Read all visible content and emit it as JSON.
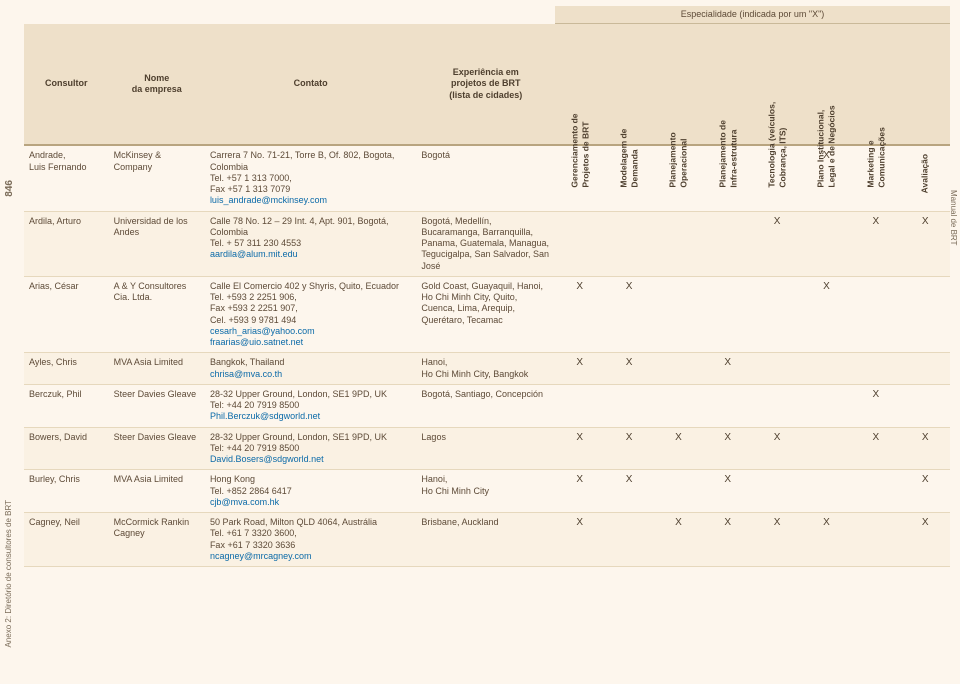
{
  "side": {
    "pageNumber": "846",
    "annex": "Anexo 2: Diretório de consultores de BRT",
    "rightLabel": "Manual de BRT"
  },
  "header": {
    "specialtyBanner": "Especialidade (indicada por um \"X\")",
    "consultor": "Consultor",
    "empresa": "Nome\nda empresa",
    "contato": "Contato",
    "experiencia": "Experiência em\nprojetos de BRT\n(lista de cidades)",
    "cols": [
      "Gerenciamento de\nProjetos de BRT",
      "Modelagem de\nDemanda",
      "Planejamento\nOperacional",
      "Planejamento de\nInfra-estrutura",
      "Tecnologia (veículos,\nCobrança, ITS)",
      "Plano Institucional,\nLegal e de Negócios",
      "Marketing e\nComunicações",
      "Avaliação"
    ]
  },
  "rows": [
    {
      "consultor": "Andrade,\nLuis Fernando",
      "empresa": "McKinsey & Company",
      "contato": "Carrera 7 No. 71-21, Torre B, Of. 802, Bogota, Colombia\nTel. +57 1 313 7000,\nFax +57 1 313 7079",
      "email": "luis_andrade@mckinsey.com",
      "exp": "Bogotá",
      "x": [
        "",
        "",
        "",
        "",
        "",
        "X",
        "",
        ""
      ]
    },
    {
      "consultor": "Ardila, Arturo",
      "empresa": "Universidad de los Andes",
      "contato": "Calle 78 No. 12 – 29 Int. 4, Apt. 901, Bogotá, Colombia\nTel. + 57 311 230 4553",
      "email": "aardila@alum.mit.edu",
      "exp": "Bogotá, Medellín, Bucaramanga, Barranquilla, Panama, Guatemala, Managua, Tegucigalpa, San Salvador, San José",
      "x": [
        "",
        "",
        "",
        "",
        "X",
        "",
        "X",
        "X"
      ]
    },
    {
      "consultor": "Arias, César",
      "empresa": "A & Y Consultores Cia. Ltda.",
      "contato": "Calle El Comercio 402 y Shyris, Quito, Ecuador\nTel. +593 2 2251 906,\nFax +593 2 2251 907,\nCel. +593 9 9781 494",
      "email": "cesarh_arias@yahoo.com\nfraarias@uio.satnet.net",
      "exp": "Gold Coast, Guayaquil, Hanoi, Ho Chi Minh City, Quito, Cuenca, Lima, Arequip, Querétaro, Tecamac",
      "x": [
        "X",
        "X",
        "",
        "",
        "",
        "X",
        "",
        ""
      ]
    },
    {
      "consultor": "Ayles, Chris",
      "empresa": "MVA Asia Limited",
      "contato": "Bangkok, Thailand",
      "email": "chrisa@mva.co.th",
      "exp": "Hanoi,\nHo Chi Minh City, Bangkok",
      "x": [
        "X",
        "X",
        "",
        "X",
        "",
        "",
        "",
        ""
      ]
    },
    {
      "consultor": "Berczuk, Phil",
      "empresa": "Steer Davies Gleave",
      "contato": "28-32 Upper Ground, London, SE1 9PD, UK\nTel: +44 20 7919 8500",
      "email": "Phil.Berczuk@sdgworld.net",
      "exp": "Bogotá, Santiago, Concepción",
      "x": [
        "",
        "",
        "",
        "",
        "",
        "",
        "X",
        ""
      ]
    },
    {
      "consultor": "Bowers, David",
      "empresa": "Steer Davies Gleave",
      "contato": "28-32 Upper Ground, London, SE1 9PD, UK\nTel: +44 20 7919 8500",
      "email": "David.Bosers@sdgworld.net",
      "exp": "Lagos",
      "x": [
        "X",
        "X",
        "X",
        "X",
        "X",
        "",
        "X",
        "X"
      ]
    },
    {
      "consultor": "Burley, Chris",
      "empresa": "MVA Asia Limited",
      "contato": "Hong Kong\nTel. +852 2864 6417",
      "email": "cjb@mva.com.hk",
      "exp": "Hanoi,\nHo Chi Minh City",
      "x": [
        "X",
        "X",
        "",
        "X",
        "",
        "",
        "",
        "X"
      ]
    },
    {
      "consultor": "Cagney, Neil",
      "empresa": "McCormick Rankin Cagney",
      "contato": "50 Park Road, Milton QLD 4064, Austrália\nTel. +61 7 3320 3600,\nFax +61 7 3320 3636",
      "email": "ncagney@mrcagney.com",
      "exp": "Brisbane, Auckland",
      "x": [
        "X",
        "",
        "X",
        "X",
        "X",
        "X",
        "",
        "X"
      ]
    }
  ]
}
